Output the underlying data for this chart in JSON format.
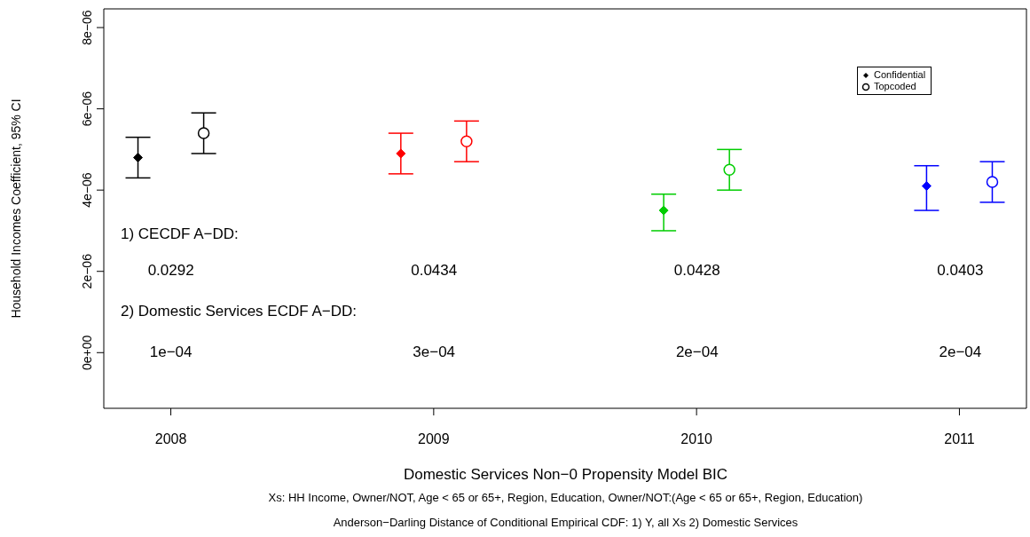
{
  "chart_data": {
    "type": "scatter",
    "xlabel": "Domestic Services Non−0 Propensity Model BIC",
    "ylabel": "Household Incomes Coefficient, 95% CI",
    "series": [
      {
        "name": "Confidential",
        "color": "#000000",
        "colors": [
          "#000000",
          "#ff0000",
          "#00cd00",
          "#0000ff"
        ],
        "marker": "diamond",
        "x": [
          2007.875,
          2008.875,
          2009.875,
          2010.875
        ],
        "values": [
          4.8e-06,
          4.9e-06,
          3.5e-06,
          4.1e-06
        ],
        "errors": [
          [
            4.3e-06,
            5.3e-06
          ],
          [
            4.4e-06,
            5.4e-06
          ],
          [
            3e-06,
            3.9e-06
          ],
          [
            3.5e-06,
            4.6e-06
          ]
        ]
      },
      {
        "name": "Topcoded",
        "color": "#000000",
        "colors": [
          "#000000",
          "#ff0000",
          "#00cd00",
          "#0000ff"
        ],
        "marker": "circle",
        "x": [
          2008.125,
          2009.125,
          2010.125,
          2011.125
        ],
        "values": [
          5.4e-06,
          5.2e-06,
          4.5e-06,
          4.2e-06
        ],
        "errors": [
          [
            4.9e-06,
            5.9e-06
          ],
          [
            4.7e-06,
            5.7e-06
          ],
          [
            4e-06,
            5e-06
          ],
          [
            3.7e-06,
            4.7e-06
          ]
        ]
      }
    ],
    "xlim": [
      2007.745,
      2011.255
    ],
    "xticks": [
      2008,
      2009,
      2010,
      2011
    ],
    "ylim": [
      -1.37e-06,
      8.46e-06
    ],
    "yticks": [
      {
        "value": 0,
        "label": "0e+00"
      },
      {
        "value": 2e-06,
        "label": "2e−06"
      },
      {
        "value": 4e-06,
        "label": "4e−06"
      },
      {
        "value": 6e-06,
        "label": "6e−06"
      },
      {
        "value": 8e-06,
        "label": "8e−06"
      }
    ],
    "legend": "top right",
    "annotations": [
      "1) CECDF A−DD:",
      "0.0292",
      "0.0434",
      "0.0428",
      "0.0403",
      "2) Domestic Services ECDF A−DD:",
      "1e−04",
      "3e−04",
      "2e−04",
      "2e−04",
      "Xs: HH Income, Owner/NOT, Age < 65 or 65+, Region, Education, Owner/NOT:(Age < 65 or 65+, Region, Education)",
      "Anderson−Darling Distance of Conditional Empirical CDF: 1) Y, all Xs  2) Domestic Services"
    ]
  }
}
